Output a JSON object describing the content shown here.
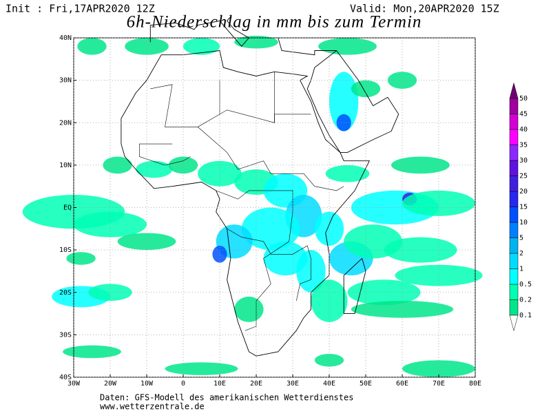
{
  "header": {
    "init": "Init : Fri,17APR2020 12Z",
    "valid": "Valid: Mon,20APR2020 15Z",
    "title": "6h-Niederschlag in mm bis zum Termin"
  },
  "map": {
    "lon_ticks": [
      {
        "value": -30,
        "label": "30W"
      },
      {
        "value": -20,
        "label": "20W"
      },
      {
        "value": -10,
        "label": "10W"
      },
      0,
      {
        "value": 10,
        "label": "10E"
      },
      {
        "value": 20,
        "label": "20E"
      },
      {
        "value": 30,
        "label": "30E"
      },
      {
        "value": 40,
        "label": "40E"
      },
      {
        "value": 50,
        "label": "50E"
      },
      {
        "value": 60,
        "label": "60E"
      },
      {
        "value": 70,
        "label": "70E"
      },
      {
        "value": 80,
        "label": "80E"
      }
    ],
    "lat_ticks": [
      {
        "value": 40,
        "label": "40N"
      },
      {
        "value": 30,
        "label": "30N"
      },
      {
        "value": 20,
        "label": "20N"
      },
      {
        "value": 10,
        "label": "10N"
      },
      {
        "value": 0,
        "label": "EQ"
      },
      {
        "value": -10,
        "label": "10S"
      },
      {
        "value": -20,
        "label": "20S"
      },
      {
        "value": -30,
        "label": "30S"
      },
      {
        "value": -40,
        "label": "40S"
      }
    ],
    "grid": true
  },
  "colorbar": {
    "levels": [
      0.1,
      0.2,
      0.5,
      1,
      2,
      5,
      10,
      15,
      20,
      25,
      30,
      35,
      40,
      45,
      50
    ],
    "colors": [
      "#00e68a",
      "#00ffb4",
      "#00ffff",
      "#00dcff",
      "#00b4f0",
      "#0080ff",
      "#0050ff",
      "#2828f0",
      "#4020e0",
      "#6010e0",
      "#8c28ff",
      "#ff00ff",
      "#d200d2",
      "#a000a0",
      "#700070"
    ]
  },
  "footer": {
    "source": "Daten: GFS-Modell des amerikanischen Wetterdienstes",
    "url": "www.wetterzentrale.de"
  }
}
